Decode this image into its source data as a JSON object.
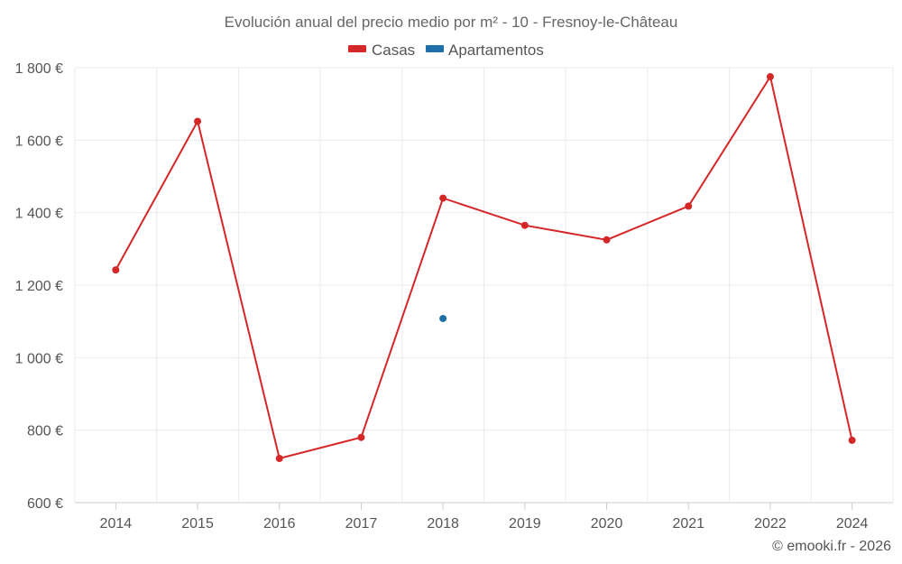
{
  "chart_data": {
    "type": "line",
    "title": "Evolución anual del precio medio por m² - 10 - Fresnoy-le-Château",
    "categories": [
      "2014",
      "2015",
      "2016",
      "2017",
      "2018",
      "2019",
      "2020",
      "2021",
      "2022",
      "2024"
    ],
    "ylim": [
      600,
      1800
    ],
    "yticks": [
      600,
      800,
      1000,
      1200,
      1400,
      1600,
      1800
    ],
    "ytick_labels": [
      "600 €",
      "800 €",
      "1 000 €",
      "1 200 €",
      "1 400 €",
      "1 600 €",
      "1 800 €"
    ],
    "grid": true,
    "legend_position": "top-center",
    "series": [
      {
        "name": "Casas",
        "color": "#d62728",
        "values": [
          1242,
          1652,
          722,
          780,
          1440,
          1365,
          1325,
          1418,
          1775,
          772
        ]
      },
      {
        "name": "Apartamentos",
        "color": "#1f6fa8",
        "values": [
          null,
          null,
          null,
          null,
          1108,
          null,
          null,
          null,
          null,
          null
        ]
      }
    ]
  },
  "credit": "© emooki.fr - 2026"
}
